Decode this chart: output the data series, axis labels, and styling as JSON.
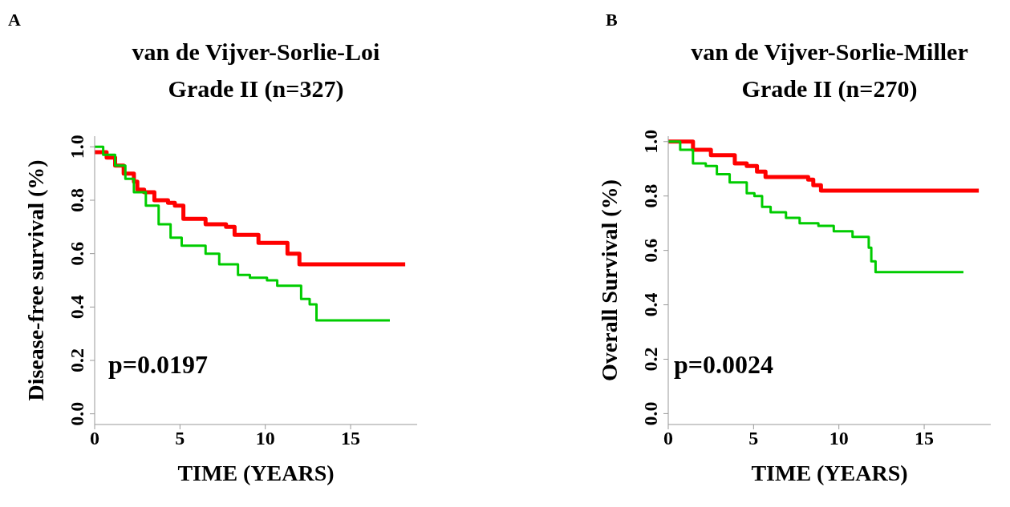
{
  "chart_data": [
    {
      "type": "step",
      "title": "van de Vijver-Sorlie-Loi",
      "subtitle": "Grade II (n=327)",
      "xlabel": "TIME (YEARS)",
      "ylabel": "Disease-free survival (%)",
      "annotations": [
        "A",
        "p=0.0197"
      ],
      "xlim": [
        0,
        18.9
      ],
      "ylim": [
        -0.04,
        1.04
      ],
      "xticks": [
        0,
        5,
        10,
        15
      ],
      "yticks": [
        {
          "value": 0,
          "label": "0.0"
        },
        {
          "value": 0.2,
          "label": "0.2"
        },
        {
          "value": 0.4,
          "label": "0.4"
        },
        {
          "value": 0.6,
          "label": "0.6"
        },
        {
          "value": 0.8,
          "label": "0.8"
        },
        {
          "value": 1,
          "label": "1.0"
        }
      ],
      "grid": false,
      "legend": false,
      "series": [
        {
          "color": "#ff0000",
          "x": [
            0,
            0.7,
            1.2,
            1.7,
            2.3,
            2.5,
            2.9,
            3.5,
            4.3,
            4.7,
            5.2,
            5.9,
            6.5,
            7.7,
            8.2,
            9.6,
            11.3,
            12.0,
            18.2
          ],
          "values": [
            0.98,
            0.96,
            0.93,
            0.9,
            0.87,
            0.84,
            0.83,
            0.8,
            0.79,
            0.78,
            0.73,
            0.73,
            0.71,
            0.7,
            0.67,
            0.64,
            0.6,
            0.56,
            0.56
          ]
        },
        {
          "color": "#00cc00",
          "x": [
            0,
            0.5,
            1.2,
            1.8,
            2.3,
            3.0,
            3.75,
            4.45,
            5.1,
            6.5,
            7.3,
            8.4,
            9.1,
            10.1,
            10.7,
            12.1,
            12.6,
            13.0,
            17.3
          ],
          "values": [
            1.0,
            0.97,
            0.93,
            0.88,
            0.83,
            0.78,
            0.71,
            0.66,
            0.63,
            0.6,
            0.56,
            0.52,
            0.51,
            0.5,
            0.48,
            0.43,
            0.41,
            0.35,
            0.35
          ]
        }
      ]
    },
    {
      "type": "step",
      "title": "van de Vijver-Sorlie-Miller",
      "subtitle": "Grade II (n=270)",
      "xlabel": "TIME (YEARS)",
      "ylabel": "Overall Survival (%)",
      "annotations": [
        "B",
        "p=0.0024"
      ],
      "xlim": [
        0,
        18.9
      ],
      "ylim": [
        -0.04,
        1.02
      ],
      "xticks": [
        0,
        5,
        10,
        15
      ],
      "yticks": [
        {
          "value": 0,
          "label": "0.0"
        },
        {
          "value": 0.2,
          "label": "0.2"
        },
        {
          "value": 0.4,
          "label": "0.4"
        },
        {
          "value": 0.6,
          "label": "0.6"
        },
        {
          "value": 0.8,
          "label": "0.8"
        },
        {
          "value": 1,
          "label": "1.0"
        }
      ],
      "grid": false,
      "legend": false,
      "series": [
        {
          "color": "#ff0000",
          "x": [
            0,
            1.45,
            2.5,
            3.9,
            4.6,
            5.2,
            5.7,
            8.2,
            8.5,
            8.95,
            18.2
          ],
          "values": [
            1.0,
            0.97,
            0.95,
            0.92,
            0.91,
            0.89,
            0.87,
            0.86,
            0.84,
            0.82,
            0.82
          ]
        },
        {
          "color": "#00cc00",
          "x": [
            0,
            0.7,
            1.45,
            2.2,
            2.85,
            3.6,
            4.6,
            5.05,
            5.5,
            6.0,
            6.9,
            7.7,
            8.8,
            9.7,
            10.8,
            11.75,
            11.9,
            12.15,
            17.3
          ],
          "values": [
            1.0,
            0.97,
            0.92,
            0.91,
            0.88,
            0.85,
            0.81,
            0.8,
            0.76,
            0.74,
            0.72,
            0.7,
            0.69,
            0.67,
            0.65,
            0.61,
            0.56,
            0.52,
            0.52
          ]
        }
      ]
    }
  ]
}
